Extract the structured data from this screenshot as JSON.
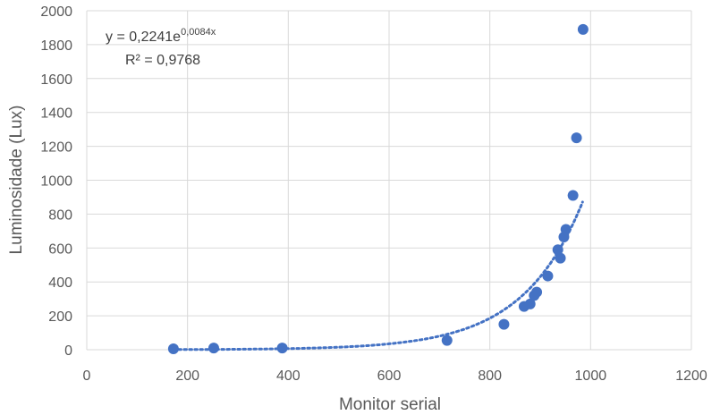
{
  "chart_data": {
    "type": "scatter",
    "title": "",
    "xlabel": "Monitor serial",
    "ylabel": "Luminosidade (Lux)",
    "xlim": [
      0,
      1200
    ],
    "ylim": [
      0,
      2000
    ],
    "xticks": [
      0,
      200,
      400,
      600,
      800,
      1000,
      1200
    ],
    "yticks": [
      0,
      200,
      400,
      600,
      800,
      1000,
      1200,
      1400,
      1600,
      1800,
      2000
    ],
    "grid": true,
    "color": "#4472C4",
    "series": [
      {
        "x": [
          172,
          252,
          388,
          715,
          828,
          868,
          880,
          888,
          893,
          915,
          935,
          940,
          947,
          951,
          965,
          972,
          985
        ],
        "y": [
          5,
          10,
          10,
          55,
          150,
          255,
          270,
          320,
          340,
          435,
          590,
          540,
          665,
          710,
          910,
          1250,
          1890
        ]
      }
    ],
    "trendline": {
      "type": "exponential",
      "a": 0.2241,
      "b": 0.0084,
      "x_range": [
        172,
        985
      ],
      "style": "dotted",
      "equation_label": "y = 0,2241e",
      "equation_exponent": "0,0084x",
      "r2_label": "R² = 0,9768"
    }
  }
}
